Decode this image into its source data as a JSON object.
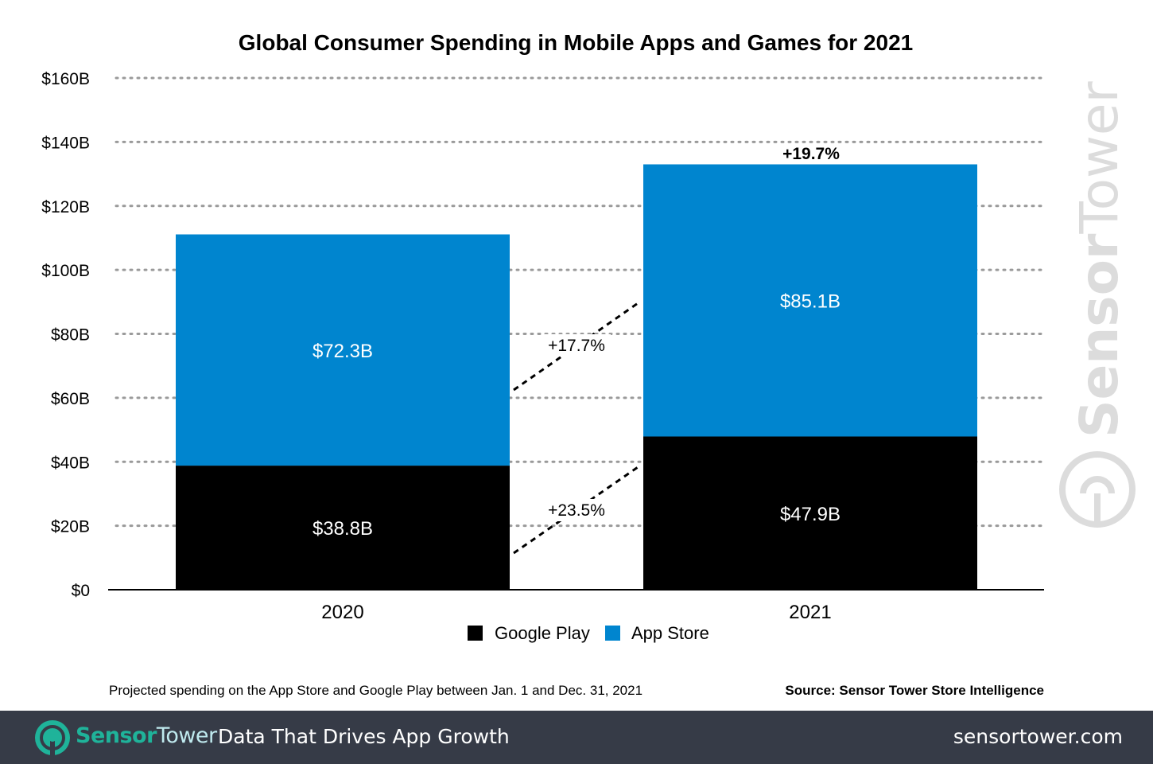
{
  "chart_data": {
    "type": "bar",
    "stacked": true,
    "title": "Global Consumer Spending in Mobile Apps and Games for 2021",
    "categories": [
      "2020",
      "2021"
    ],
    "series": [
      {
        "name": "Google Play",
        "values": [
          38.8,
          47.9
        ],
        "labels": [
          "$38.8B",
          "$47.9B"
        ],
        "color": "#000000"
      },
      {
        "name": "App Store",
        "values": [
          72.3,
          85.1
        ],
        "labels": [
          "$72.3B",
          "$85.1B"
        ],
        "color": "#0085cf"
      }
    ],
    "ylim": [
      0,
      160
    ],
    "yticks": [
      0,
      20,
      40,
      60,
      80,
      100,
      120,
      140,
      160
    ],
    "ytick_labels": [
      "$0",
      "$20B",
      "$40B",
      "$60B",
      "$80B",
      "$100B",
      "$120B",
      "$140B",
      "$160B"
    ],
    "grid": "dotted horizontal",
    "legend_position": "bottom",
    "annotations": {
      "total_growth": "+19.7%",
      "app_store_growth": "+17.7%",
      "google_play_growth": "+23.5%"
    },
    "footnote": "Projected spending on the App Store and Google Play between Jan. 1 and Dec. 31, 2021",
    "source": "Source: Sensor Tower Store Intelligence",
    "watermark": "SensorTower"
  },
  "footer": {
    "brand_part1": "Sensor",
    "brand_part2": "Tower",
    "tagline": "Data That Drives App Growth",
    "website": "sensortower.com",
    "colors": {
      "background": "#363b47",
      "brand": "#1fb39a"
    }
  }
}
